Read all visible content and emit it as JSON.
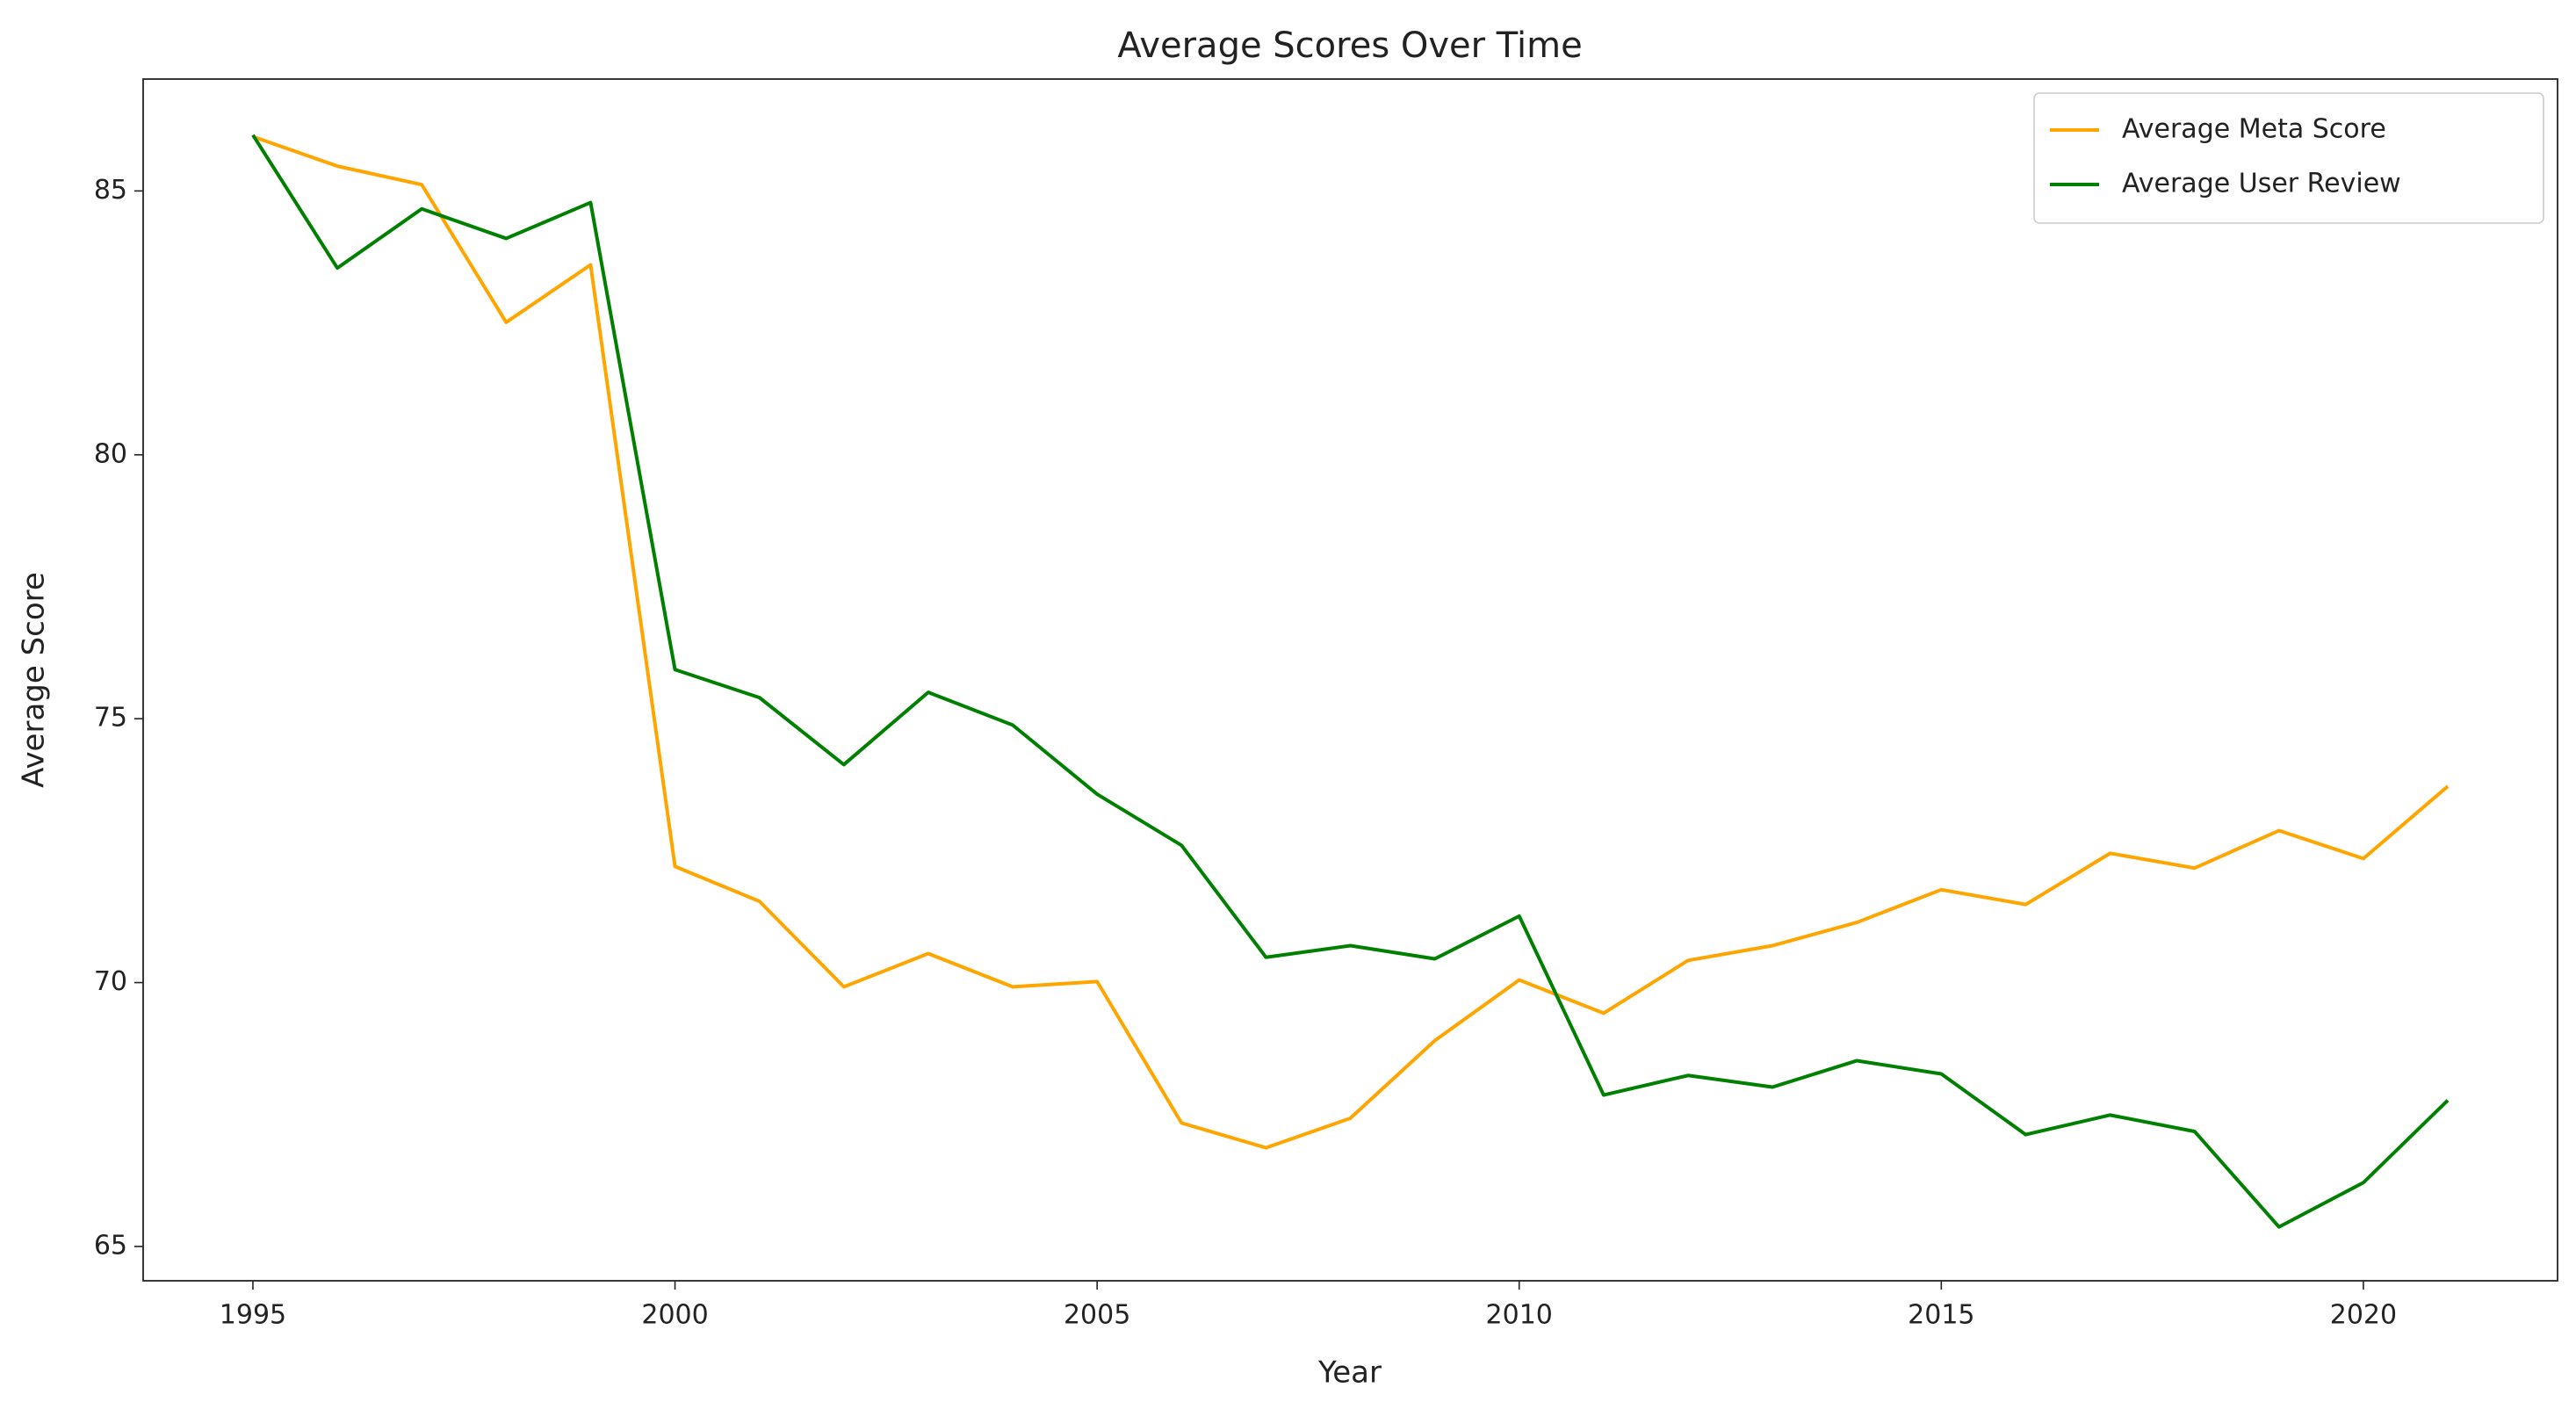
{
  "chart_data": {
    "type": "line",
    "title": "Average Scores Over Time",
    "x_label": "Year",
    "y_label": "Average Score",
    "x": [
      1995,
      1996,
      1997,
      1998,
      1999,
      2000,
      2001,
      2002,
      2003,
      2004,
      2005,
      2006,
      2007,
      2008,
      2009,
      2010,
      2011,
      2012,
      2013,
      2014,
      2015,
      2016,
      2017,
      2018,
      2019,
      2020,
      2021
    ],
    "series": [
      {
        "name": "Average Meta Score",
        "color": "#ffa500",
        "values": [
          86.03,
          85.47,
          85.12,
          82.51,
          83.6,
          72.2,
          71.54,
          69.92,
          70.55,
          69.92,
          70.02,
          67.34,
          66.87,
          67.43,
          68.9,
          70.05,
          69.42,
          70.42,
          70.7,
          71.14,
          71.76,
          71.48,
          72.45,
          72.17,
          72.88,
          72.35,
          73.72
        ]
      },
      {
        "name": "Average User Review",
        "color": "#008000",
        "values": [
          86.06,
          83.54,
          84.66,
          84.1,
          84.78,
          75.93,
          75.4,
          74.13,
          75.5,
          74.88,
          73.57,
          72.6,
          70.48,
          70.7,
          70.45,
          71.26,
          67.87,
          68.24,
          68.02,
          68.52,
          68.27,
          67.12,
          67.49,
          67.18,
          65.37,
          66.21,
          67.77
        ]
      }
    ],
    "xlim": [
      1993.7,
      2022.3
    ],
    "ylim": [
      64.35,
      87.12
    ],
    "xticks": [
      1995,
      2000,
      2005,
      2010,
      2015,
      2020
    ],
    "yticks": [
      65,
      70,
      75,
      80,
      85
    ],
    "grid": false,
    "legend": "upper right"
  }
}
